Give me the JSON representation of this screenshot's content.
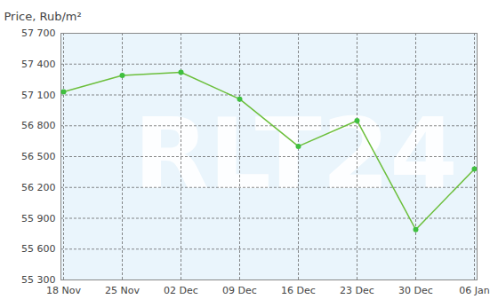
{
  "chart_data": {
    "type": "line",
    "title": "Price, Rub/m²",
    "categories": [
      "18 Nov",
      "25 Nov",
      "02 Dec",
      "09 Dec",
      "16 Dec",
      "23 Dec",
      "30 Dec",
      "06 Jan"
    ],
    "values": [
      57130,
      57290,
      57320,
      57060,
      56600,
      56850,
      55790,
      56380
    ],
    "color": "#6cbf3c",
    "marker": "circle",
    "grid": true,
    "ylim": [
      55300,
      57700
    ],
    "yticks": [
      {
        "value": 55300,
        "label": "55 300"
      },
      {
        "value": 55600,
        "label": "55 600"
      },
      {
        "value": 55900,
        "label": "55 900"
      },
      {
        "value": 56200,
        "label": "56 200"
      },
      {
        "value": 56500,
        "label": "56 500"
      },
      {
        "value": 56800,
        "label": "56 800"
      },
      {
        "value": 57100,
        "label": "57 100"
      },
      {
        "value": 57400,
        "label": "57 400"
      },
      {
        "value": 57700,
        "label": "57 700"
      }
    ],
    "annotations": [
      "RLT24"
    ]
  }
}
